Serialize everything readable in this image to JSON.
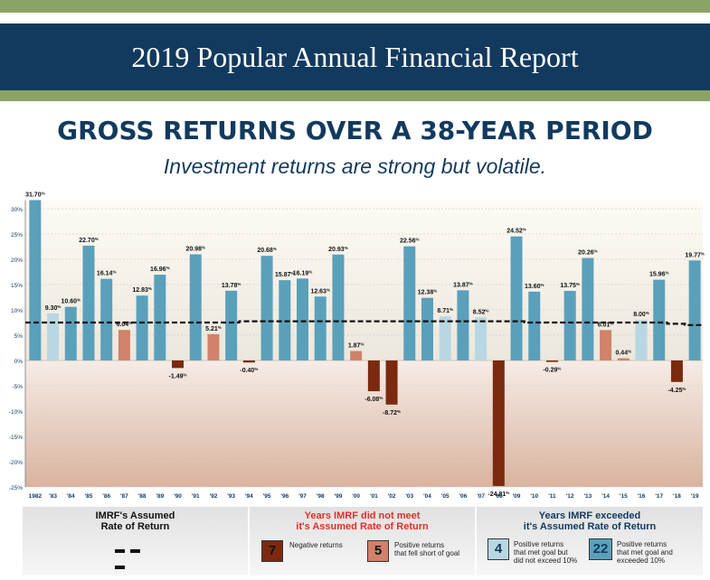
{
  "header": {
    "title": "2019 Popular Annual Financial Report"
  },
  "headline": "GROSS RETURNS OVER A 38-YEAR PERIOD",
  "subheadline": "Investment returns are strong but volatile.",
  "colors": {
    "banner": "#123a5e",
    "accent_green": "#8aa563",
    "exceeded_goal_bar": "#5aa0bb",
    "met_goal_bar": "#b8d7e2",
    "short_of_goal_bar": "#d0826a",
    "negative_bar": "#7b2a10",
    "red_text": "#e0302a"
  },
  "chart_data": {
    "type": "bar",
    "categories": [
      "1982",
      "'83",
      "'84",
      "'85",
      "'86",
      "'87",
      "'88",
      "'89",
      "'90",
      "'91",
      "'92",
      "'93",
      "'94",
      "'95",
      "'96",
      "'97",
      "'98",
      "'99",
      "'00",
      "'01",
      "'02",
      "'03",
      "'04",
      "'05",
      "'06",
      "'07",
      "'08",
      "'09",
      "'10",
      "'11",
      "'12",
      "'13",
      "'14",
      "'15",
      "'16",
      "'17",
      "'18",
      "'19"
    ],
    "values": [
      31.7,
      9.3,
      10.6,
      22.7,
      16.14,
      6.04,
      12.83,
      16.96,
      -1.49,
      20.98,
      5.21,
      13.78,
      -0.4,
      20.68,
      15.87,
      16.19,
      12.63,
      20.93,
      1.87,
      -6.08,
      -8.72,
      22.56,
      12.38,
      8.71,
      13.87,
      8.52,
      -24.81,
      24.52,
      13.6,
      -0.29,
      13.75,
      20.26,
      6.01,
      0.44,
      8.0,
      15.96,
      -4.25,
      19.77
    ],
    "labels": [
      "31.70%",
      "9.30%",
      "10.60%",
      "22.70%",
      "16.14%",
      "6.04%",
      "12.83%",
      "16.96%",
      "-1.49%",
      "20.98%",
      "5.21%",
      "13.78%",
      "-0.40%",
      "20.68%",
      "15.87%",
      "16.19%",
      "12.63%",
      "20.93%",
      "1.87%",
      "-6.08%",
      "-8.72%",
      "22.56%",
      "12.38%",
      "8.71%",
      "13.87%",
      "8.52%",
      "-24.81%",
      "24.52%",
      "13.60%",
      "-0.29%",
      "13.75%",
      "20.26%",
      "6.01%",
      "0.44%",
      "8.00%",
      "15.96%",
      "-4.25%",
      "19.77%"
    ],
    "assumed_rate": [
      7.5,
      7.5,
      7.5,
      7.5,
      7.5,
      7.5,
      7.5,
      7.5,
      7.5,
      7.5,
      7.5,
      7.5,
      7.75,
      7.75,
      7.75,
      7.75,
      7.75,
      7.75,
      7.75,
      7.75,
      7.75,
      7.75,
      7.75,
      7.75,
      7.75,
      7.75,
      7.75,
      7.75,
      7.5,
      7.5,
      7.5,
      7.5,
      7.5,
      7.5,
      7.5,
      7.5,
      7.25,
      7.0
    ],
    "yticks": [
      "30%",
      "25%",
      "20%",
      "15%",
      "10%",
      "5%",
      "0%",
      "-5%",
      "-10%",
      "-15%",
      "-20%",
      "-25%"
    ],
    "ylim": [
      -25,
      31.7
    ],
    "grid": true,
    "legend_position": "bottom"
  },
  "legend": {
    "assumed": {
      "title_line1": "IMRF's Assumed",
      "title_line2": "Rate of Return"
    },
    "not_met": {
      "title_line1": "Years IMRF did not meet",
      "title_line2": "it's Assumed Rate of Return",
      "negative_count": "7",
      "negative_label": "Negative returns",
      "short_count": "5",
      "short_label_line1": "Positive returns",
      "short_label_line2": "that fell short of goal"
    },
    "exceeded": {
      "title_line1": "Years IMRF exceeded",
      "title_line2": "it's Assumed Rate of Return",
      "met_count": "4",
      "met_label_line1": "Positive returns",
      "met_label_line2": "that met goal but",
      "met_label_line3": "did not exceed 10%",
      "exceeded_count": "22",
      "exceeded_label_line1": "Positive returns",
      "exceeded_label_line2": "that met goal and",
      "exceeded_label_line3": "exceeded 10%"
    }
  }
}
